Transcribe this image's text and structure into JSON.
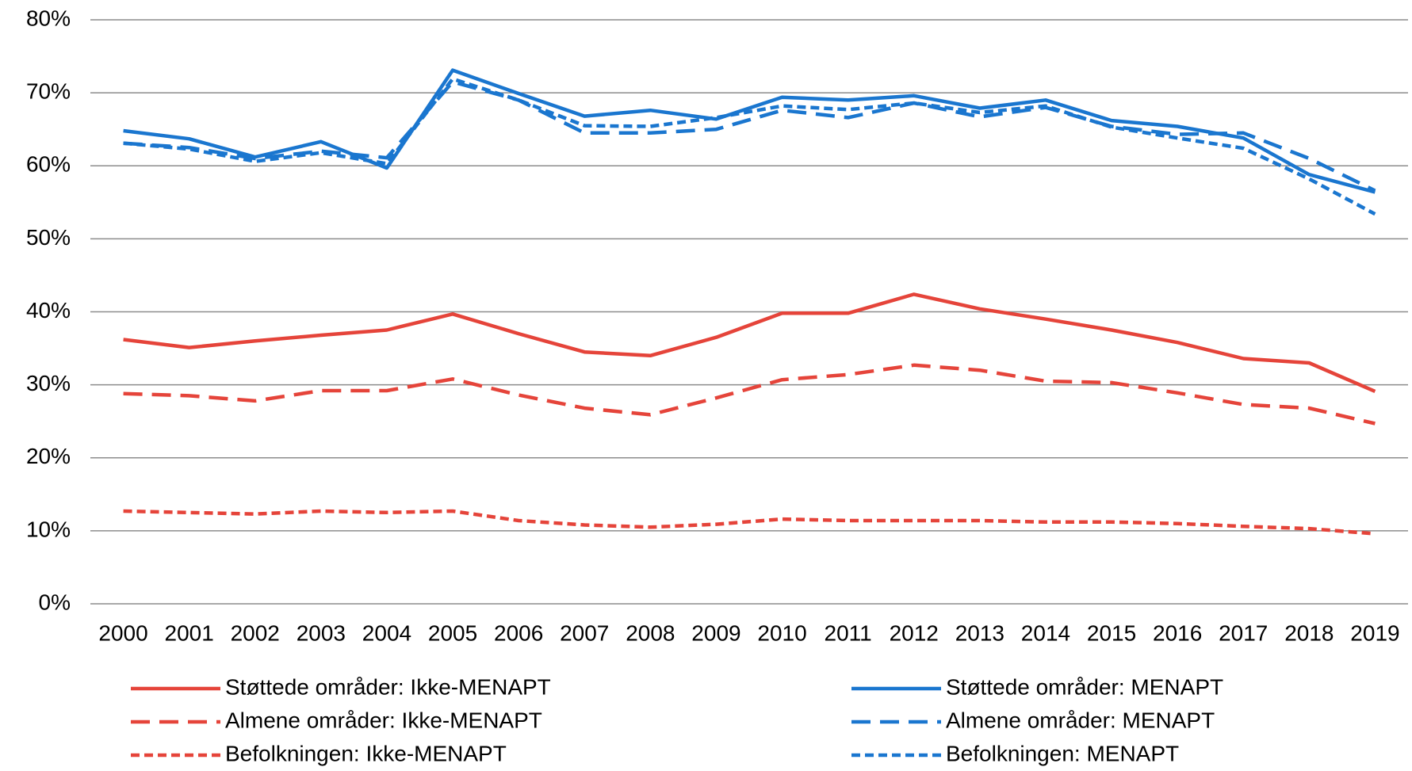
{
  "chart_data": {
    "type": "line",
    "categories": [
      "2000",
      "2001",
      "2002",
      "2003",
      "2004",
      "2005",
      "2006",
      "2007",
      "2008",
      "2009",
      "2010",
      "2011",
      "2012",
      "2013",
      "2014",
      "2015",
      "2016",
      "2017",
      "2018",
      "2019"
    ],
    "ylim": [
      0,
      80
    ],
    "yticks": [
      {
        "value": 0,
        "label": "0%"
      },
      {
        "value": 10,
        "label": "10%"
      },
      {
        "value": 20,
        "label": "20%"
      },
      {
        "value": 30,
        "label": "30%"
      },
      {
        "value": 40,
        "label": "40%"
      },
      {
        "value": 50,
        "label": "50%"
      },
      {
        "value": 60,
        "label": "60%"
      },
      {
        "value": 70,
        "label": "70%"
      },
      {
        "value": 80,
        "label": "80%"
      }
    ],
    "grid": true,
    "series": [
      {
        "name": "Støttede områder: Ikke-MENAPT",
        "color": "#e5443a",
        "style": "solid",
        "values": [
          36.2,
          35.1,
          36,
          36.8,
          37.5,
          39.7,
          37,
          34.5,
          34,
          36.5,
          39.8,
          39.8,
          42.4,
          40.4,
          39,
          37.5,
          35.8,
          33.6,
          33,
          29.1
        ]
      },
      {
        "name": "Almene områder: Ikke-MENAPT",
        "color": "#e5443a",
        "style": "dashed",
        "values": [
          28.8,
          28.5,
          27.8,
          29.2,
          29.2,
          30.8,
          28.6,
          26.8,
          25.9,
          28.2,
          30.7,
          31.4,
          32.7,
          32,
          30.5,
          30.3,
          28.9,
          27.3,
          26.8,
          24.7
        ]
      },
      {
        "name": "Befolkningen: Ikke-MENAPT",
        "color": "#e5443a",
        "style": "dotted",
        "values": [
          12.7,
          12.5,
          12.3,
          12.7,
          12.5,
          12.7,
          11.4,
          10.8,
          10.5,
          10.9,
          11.6,
          11.4,
          11.4,
          11.4,
          11.2,
          11.2,
          11,
          10.6,
          10.3,
          9.6
        ]
      },
      {
        "name": "Støttede områder: MENAPT",
        "color": "#1a76cf",
        "style": "solid",
        "values": [
          64.8,
          63.7,
          61.2,
          63.3,
          59.7,
          73.1,
          69.9,
          66.8,
          67.6,
          66.4,
          69.4,
          69,
          69.6,
          67.9,
          69,
          66.2,
          65.4,
          63.8,
          58.8,
          56.4
        ]
      },
      {
        "name": "Almene områder: MENAPT",
        "color": "#1a76cf",
        "style": "dashed",
        "values": [
          63.1,
          62.5,
          61,
          62,
          61.1,
          71.5,
          69,
          64.5,
          64.5,
          65,
          67.6,
          66.6,
          68.6,
          66.7,
          68,
          65.4,
          64.3,
          64.5,
          61,
          56.6
        ]
      },
      {
        "name": "Befolkningen: MENAPT",
        "color": "#1a76cf",
        "style": "dotted",
        "values": [
          63.1,
          62.3,
          60.6,
          61.8,
          60.3,
          71.9,
          69,
          65.5,
          65.4,
          66.6,
          68.2,
          67.7,
          68.6,
          67.3,
          68.2,
          65.3,
          63.8,
          62.4,
          58.2,
          53.4
        ]
      }
    ]
  }
}
